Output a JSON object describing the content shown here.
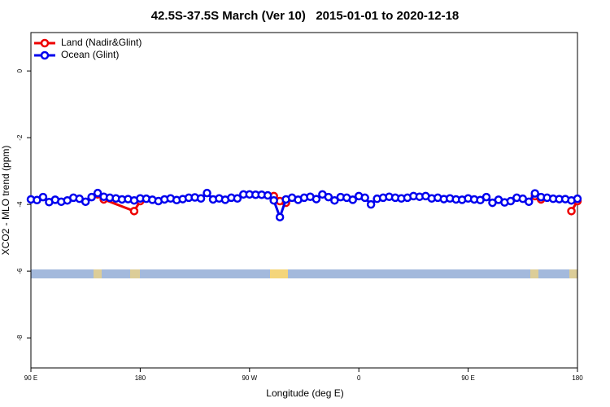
{
  "chart_data": {
    "type": "line",
    "title": "42.5S-37.5S March (Ver 10)   2015-01-01 to 2020-12-18",
    "x_label": "Longitude (deg E)",
    "y_label": "XCO2 - MLO trend (ppm)",
    "xlim": [
      90,
      540
    ],
    "xticks": [
      {
        "value": 90,
        "label": "90 E"
      },
      180,
      {
        "value": 270,
        "label": "90 W"
      },
      {
        "value": 360,
        "label": "0"
      },
      {
        "value": 450,
        "label": "90 E"
      },
      {
        "value": 540,
        "label": "180"
      }
    ],
    "ylim": [
      -8.9,
      1.15
    ],
    "yticks": [
      0,
      -2,
      -4,
      -6,
      -8
    ],
    "legend": "top-left",
    "series": [
      {
        "name": "Land (Nadir&Glint)",
        "color": "#ee0000",
        "x": [
          145,
          150,
          175,
          180,
          185,
          290,
          295,
          300,
          305,
          505,
          510,
          515,
          535,
          540
        ],
        "values": [
          -3.7,
          -3.85,
          -4.2,
          -3.9,
          null,
          -3.75,
          -3.9,
          -3.95,
          null,
          -3.75,
          -3.85,
          null,
          -4.2,
          -3.9
        ]
      },
      {
        "name": "Ocean (Glint)",
        "color": "#0000ee",
        "x": [
          90,
          95,
          100,
          105,
          110,
          115,
          120,
          125,
          130,
          135,
          140,
          145,
          150,
          155,
          160,
          165,
          170,
          175,
          180,
          185,
          190,
          195,
          200,
          205,
          210,
          215,
          220,
          225,
          230,
          235,
          240,
          245,
          250,
          255,
          260,
          265,
          270,
          275,
          280,
          285,
          290,
          295,
          300,
          305,
          310,
          315,
          320,
          325,
          330,
          335,
          340,
          345,
          350,
          355,
          360,
          365,
          370,
          375,
          380,
          385,
          390,
          395,
          400,
          405,
          410,
          415,
          420,
          425,
          430,
          435,
          440,
          445,
          450,
          455,
          460,
          465,
          470,
          475,
          480,
          485,
          490,
          495,
          500,
          505,
          510,
          515,
          520,
          525,
          530,
          535,
          540
        ],
        "values": [
          -3.85,
          -3.87,
          -3.78,
          -3.93,
          -3.86,
          -3.92,
          -3.88,
          -3.8,
          -3.83,
          -3.92,
          -3.78,
          -3.66,
          -3.77,
          -3.8,
          -3.82,
          -3.85,
          -3.84,
          -3.88,
          -3.82,
          -3.83,
          -3.86,
          -3.9,
          -3.85,
          -3.82,
          -3.87,
          -3.84,
          -3.8,
          -3.79,
          -3.82,
          -3.66,
          -3.85,
          -3.82,
          -3.86,
          -3.8,
          -3.82,
          -3.7,
          -3.7,
          -3.71,
          -3.71,
          -3.73,
          -3.88,
          -4.38,
          -3.85,
          -3.8,
          -3.86,
          -3.8,
          -3.77,
          -3.84,
          -3.7,
          -3.78,
          -3.88,
          -3.78,
          -3.8,
          -3.86,
          -3.75,
          -3.8,
          -4.0,
          -3.83,
          -3.8,
          -3.77,
          -3.8,
          -3.82,
          -3.8,
          -3.75,
          -3.77,
          -3.75,
          -3.82,
          -3.8,
          -3.84,
          -3.82,
          -3.85,
          -3.86,
          -3.82,
          -3.85,
          -3.87,
          -3.78,
          -3.95,
          -3.86,
          -3.94,
          -3.9,
          -3.8,
          -3.83,
          -3.92,
          -3.67,
          -3.78,
          -3.8,
          -3.83,
          -3.84,
          -3.84,
          -3.88,
          -3.83
        ]
      }
    ]
  }
}
